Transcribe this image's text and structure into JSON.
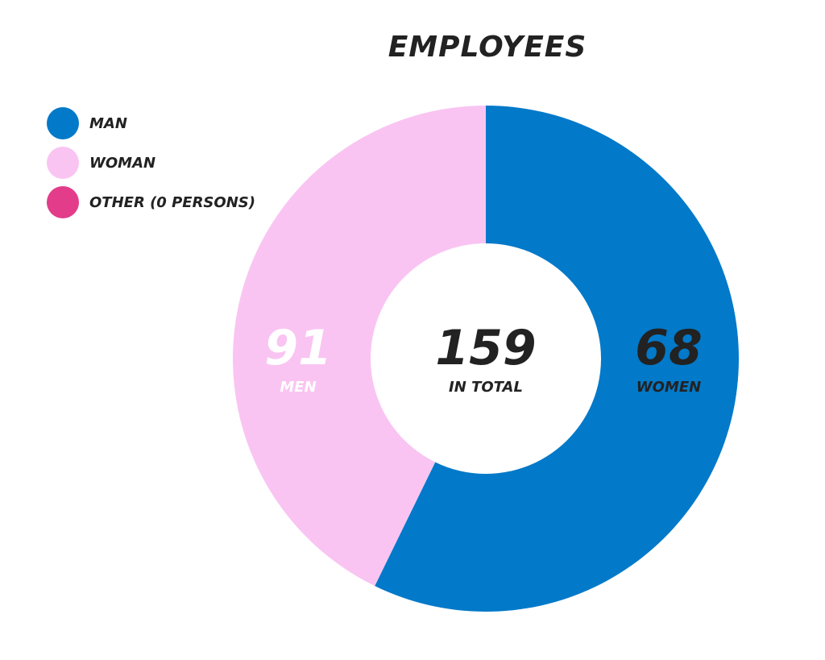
{
  "chart_data": {
    "type": "pie",
    "title": "EMPLOYEES",
    "categories": [
      "MAN",
      "WOMAN",
      "OTHER (0 PERSONS)"
    ],
    "values": [
      91,
      68,
      0
    ],
    "colors": [
      "#0279c9",
      "#f9c4f2",
      "#e33c8a"
    ],
    "slice_labels": [
      {
        "value": "91",
        "caption": "MEN"
      },
      {
        "value": "68",
        "caption": "WOMEN"
      }
    ],
    "center": {
      "value": "159",
      "caption": "IN TOTAL"
    },
    "legend_position": "top-left",
    "donut": true
  }
}
